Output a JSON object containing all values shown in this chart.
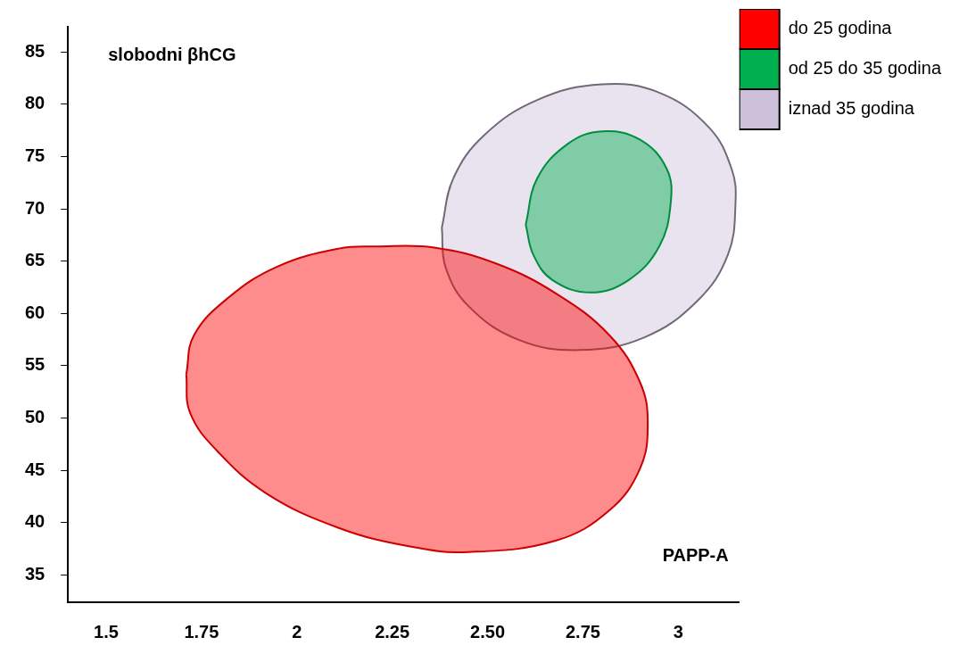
{
  "chart_data": {
    "type": "area",
    "xlabel": "PAPP-A",
    "ylabel": "slobodni βhCG",
    "legend": "top right",
    "grid": false,
    "marker": "none",
    "line_style": "solid",
    "xlim": [
      1.4,
      3.16
    ],
    "xticks": [
      1.5,
      1.75,
      2,
      2.25,
      {
        "value": 2.5,
        "label": "2.50"
      },
      2.75,
      3
    ],
    "ylim": [
      32.4,
      87.4
    ],
    "yticks": [
      35,
      40,
      45,
      50,
      55,
      60,
      65,
      70,
      75,
      80,
      85
    ],
    "series": [
      {
        "name": "do 25 godina",
        "color": "#ff0000",
        "x": [
          1.71,
          1.73,
          1.82,
          1.95,
          2.11,
          2.21,
          2.36,
          2.52,
          2.68,
          2.82,
          2.9,
          2.92,
          2.9,
          2.82,
          2.68,
          2.45,
          2.3,
          2.11,
          1.92,
          1.79,
          1.72
        ],
        "values": [
          54.2,
          57.9,
          61.5,
          64.5,
          66.2,
          66.4,
          66.3,
          64.8,
          61.9,
          57.9,
          53.4,
          49.5,
          45.2,
          41.2,
          38.3,
          37.2,
          37.7,
          39.5,
          42.8,
          46.9,
          50.5
        ]
      },
      {
        "name": "od 25 do 35 godina",
        "color": "#00b050",
        "x": [
          2.6,
          2.63,
          2.71,
          2.8,
          2.9,
          2.97,
          2.98,
          2.95,
          2.87,
          2.77,
          2.67,
          2.62
        ],
        "values": [
          68.5,
          72.9,
          76.2,
          77.4,
          76.6,
          73.8,
          70.5,
          66.4,
          63.2,
          62.0,
          63.2,
          65.6
        ]
      },
      {
        "name": "iznad 35 godina",
        "color": "#ccc0da",
        "x": [
          2.38,
          2.41,
          2.49,
          2.63,
          2.8,
          2.95,
          3.08,
          3.14,
          3.15,
          3.13,
          3.05,
          2.91,
          2.74,
          2.58,
          2.45,
          2.39
        ],
        "values": [
          68.2,
          72.9,
          77.0,
          80.4,
          81.9,
          81.1,
          77.8,
          73.8,
          70.5,
          65.6,
          61.2,
          57.7,
          56.5,
          57.5,
          60.7,
          64.4
        ]
      }
    ]
  }
}
